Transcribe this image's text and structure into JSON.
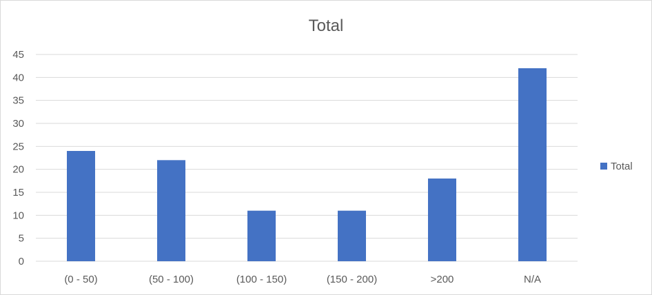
{
  "chart_data": {
    "type": "bar",
    "title": "Total",
    "xlabel": "",
    "ylabel": "",
    "categories": [
      "(0 - 50)",
      "(50 - 100)",
      "(100 - 150)",
      "(150 - 200)",
      ">200",
      "N/A"
    ],
    "series": [
      {
        "name": "Total",
        "values": [
          24,
          22,
          11,
          11,
          18,
          42
        ],
        "color": "#4472c4"
      }
    ],
    "ylim": [
      0,
      45
    ],
    "yticks": [
      0,
      5,
      10,
      15,
      20,
      25,
      30,
      35,
      40,
      45
    ],
    "grid": true,
    "legend": "right"
  },
  "colors": {
    "bar": "#4472c4",
    "grid": "#d9d9d9",
    "text": "#595959",
    "border": "#d9d9d9"
  }
}
